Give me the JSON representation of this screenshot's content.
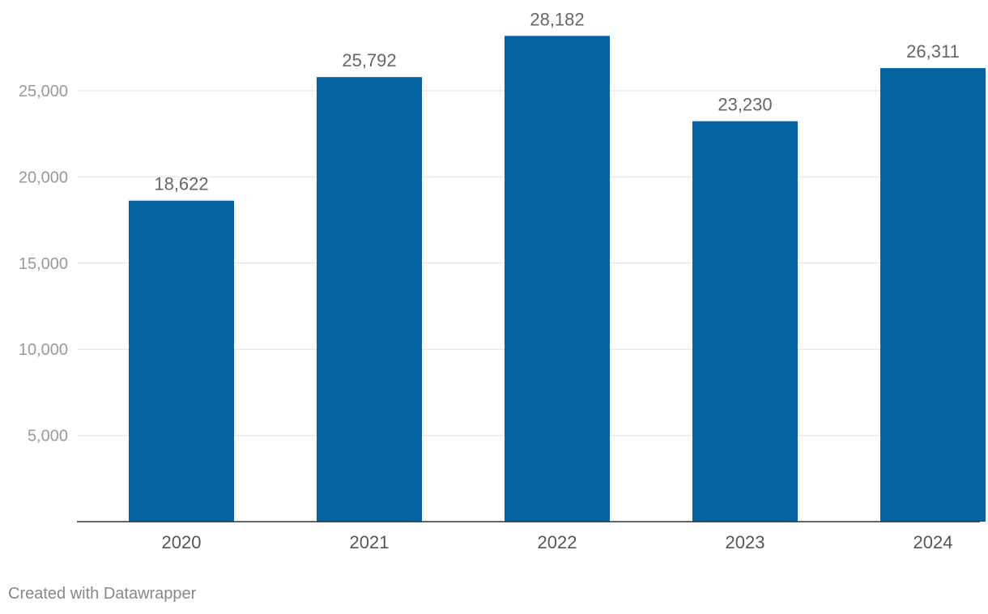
{
  "chart_data": {
    "type": "bar",
    "categories": [
      "2020",
      "2021",
      "2022",
      "2023",
      "2024"
    ],
    "values": [
      18622,
      25792,
      28182,
      23230,
      26311
    ],
    "value_labels": [
      "18,622",
      "25,792",
      "28,182",
      "23,230",
      "26,311"
    ],
    "yticks": [
      5000,
      10000,
      15000,
      20000,
      25000
    ],
    "ytick_labels": [
      "5,000",
      "10,000",
      "15,000",
      "20,000",
      "25,000"
    ],
    "ylim": [
      0,
      30000
    ],
    "grid": true,
    "bar_color": "#0562a0",
    "grid_color": "#e0e0e0",
    "axis_color": "#333333",
    "tick_label_color": "#999999",
    "category_label_color": "#555555",
    "value_label_color": "#666666"
  },
  "footer": {
    "credit": "Created with Datawrapper"
  }
}
